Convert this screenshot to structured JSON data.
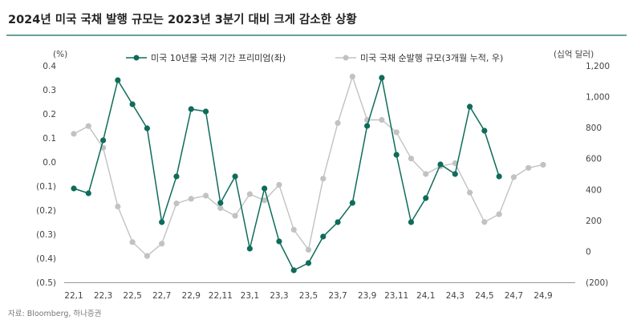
{
  "title": "2024년 미국 국채 발행 규모는 2023년 3분기 대비 크게 감소한 상황",
  "source": "자료: Bloomberg, 하나증권",
  "colors": {
    "accent_rule": "#0f6b5a",
    "premium_series": "#0f6b5a",
    "issuance_series": "#c2c2c2"
  },
  "chart_data": {
    "type": "line",
    "x": [
      "22,1",
      "22,2",
      "22,3",
      "22,4",
      "22,5",
      "22,6",
      "22,7",
      "22,8",
      "22,9",
      "22,10",
      "22,11",
      "22,12",
      "23,1",
      "23,2",
      "23,3",
      "23,4",
      "23,5",
      "23,6",
      "23,7",
      "23,8",
      "23,9",
      "23,10",
      "23,11",
      "23,12",
      "24,1",
      "24,2",
      "24,3",
      "24,4",
      "24,5",
      "24,6",
      "24,7",
      "24,8",
      "24,9"
    ],
    "xtick_labels": [
      "22,1",
      "22,3",
      "22,5",
      "22,7",
      "22,9",
      "22,11",
      "23,1",
      "23,3",
      "23,5",
      "23,7",
      "23,9",
      "23,11",
      "24,1",
      "24,3",
      "24,5",
      "24,7",
      "24,9"
    ],
    "left_axis": {
      "unit": "(%)",
      "ylim": [
        -0.5,
        0.4
      ],
      "ticks": [
        0.4,
        0.3,
        0.2,
        0.1,
        0.0,
        -0.1,
        -0.2,
        -0.3,
        -0.4,
        -0.5
      ],
      "tick_labels": [
        "0.4",
        "0.3",
        "0.2",
        "0.1",
        "0.0",
        "(0.1)",
        "(0.2)",
        "(0.3)",
        "(0.4)",
        "(0.5)"
      ]
    },
    "right_axis": {
      "unit": "(십억 달러)",
      "ylim": [
        -200,
        1200
      ],
      "ticks": [
        1200,
        1000,
        800,
        600,
        400,
        200,
        0,
        -200
      ],
      "tick_labels": [
        "1,200",
        "1,000",
        "800",
        "600",
        "400",
        "200",
        "0",
        "(200)"
      ]
    },
    "series": [
      {
        "name": "미국 10년물 국채 기간 프리미엄(좌)",
        "axis": "left",
        "values": [
          -0.11,
          -0.13,
          0.09,
          0.34,
          0.24,
          0.14,
          -0.25,
          -0.06,
          0.22,
          0.21,
          -0.17,
          -0.06,
          -0.36,
          -0.11,
          -0.33,
          -0.45,
          -0.42,
          -0.31,
          -0.25,
          -0.17,
          0.15,
          0.35,
          0.03,
          -0.25,
          -0.15,
          -0.01,
          -0.05,
          0.23,
          0.13,
          -0.06,
          null,
          null,
          null
        ]
      },
      {
        "name": "미국 국채 순발행 규모(3개월 누적, 우)",
        "axis": "right",
        "values": [
          760,
          810,
          670,
          290,
          60,
          -30,
          50,
          310,
          340,
          360,
          280,
          230,
          370,
          330,
          430,
          140,
          10,
          470,
          830,
          1130,
          850,
          850,
          770,
          600,
          500,
          550,
          570,
          380,
          190,
          240,
          480,
          540,
          560
        ]
      }
    ],
    "grid": false,
    "legend_position": "top"
  }
}
